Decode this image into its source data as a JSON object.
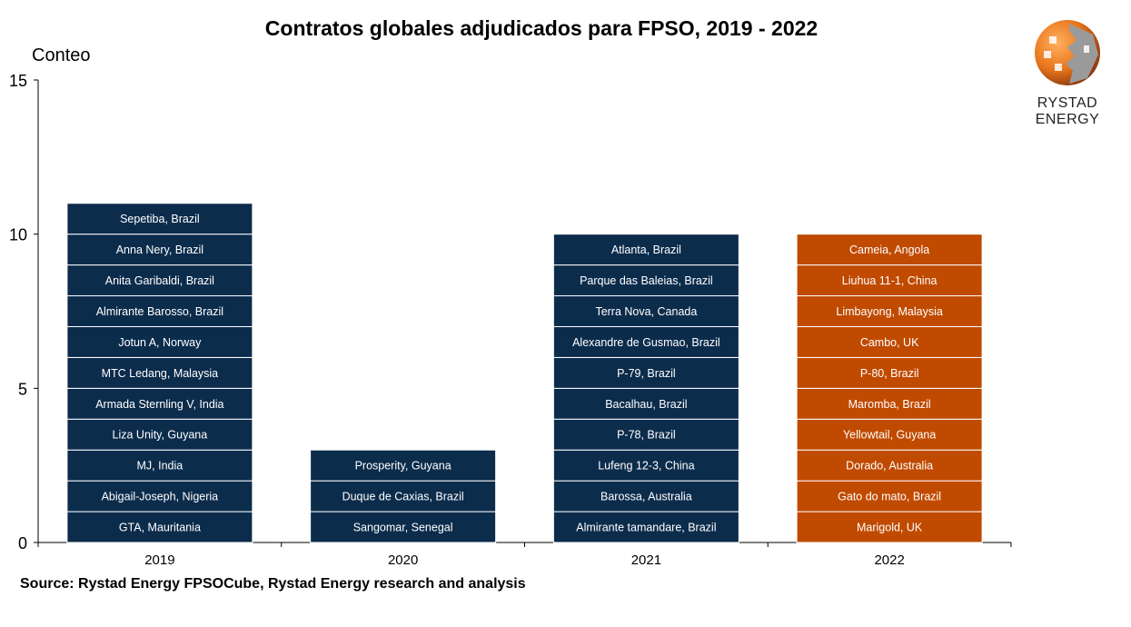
{
  "chart_data": {
    "type": "bar",
    "stacked": true,
    "title": "Contratos globales adjudicados para FPSO, 2019 - 2022",
    "ylabel": "Conteo",
    "xlabel": "",
    "ylim": [
      0,
      15
    ],
    "yticks": [
      0,
      5,
      10,
      15
    ],
    "grid": false,
    "categories": [
      "2019",
      "2020",
      "2021",
      "2022"
    ],
    "values": [
      11,
      3,
      10,
      10
    ],
    "colors": {
      "2019": "#0c2c4c",
      "2020": "#0c2c4c",
      "2021": "#0c2c4c",
      "2022": "#c04a00"
    },
    "segment_labels": {
      "2019": [
        "GTA, Mauritania",
        "Abigail-Joseph,  Nigeria",
        "MJ, India",
        "Liza Unity, Guyana",
        "Armada Sternling V, India",
        "MTC Ledang, Malaysia",
        "Jotun A, Norway",
        "Almirante Barosso, Brazil",
        "Anita Garibaldi, Brazil",
        "Anna Nery, Brazil",
        "Sepetiba, Brazil"
      ],
      "2020": [
        "Sangomar, Senegal",
        "Duque de Caxias, Brazil",
        "Prosperity, Guyana"
      ],
      "2021": [
        "Almirante tamandare, Brazil",
        "Barossa, Australia",
        "Lufeng 12-3, China",
        "P-78, Brazil",
        "Bacalhau, Brazil",
        "P-79, Brazil",
        "Alexandre de Gusmao, Brazil",
        "Terra Nova, Canada",
        "Parque das Baleias, Brazil",
        "Atlanta, Brazil"
      ],
      "2022": [
        "Marigold, UK",
        "Gato do mato, Brazil",
        "Dorado, Australia",
        "Yellowtail, Guyana",
        "Maromba, Brazil",
        "P-80, Brazil",
        "Cambo, UK",
        "Limbayong, Malaysia",
        "Liuhua 11-1, China",
        "Cameia, Angola"
      ]
    },
    "source": "Source: Rystad Energy FPSOCube, Rystad Energy research and analysis"
  },
  "logo": {
    "text": "RYSTAD ENERGY"
  }
}
